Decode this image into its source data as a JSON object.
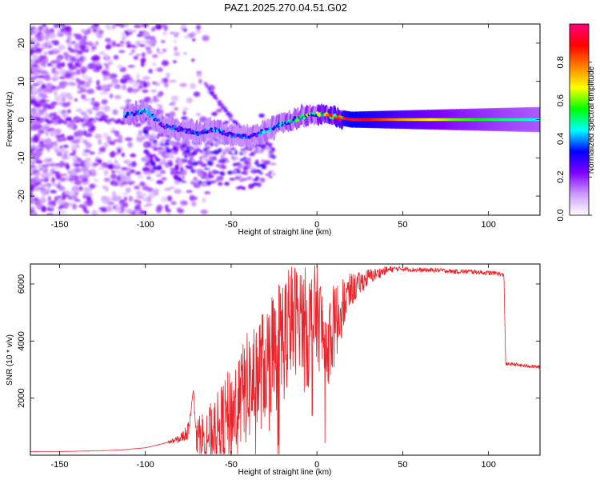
{
  "title": "PAZ1.2025.270.04.51.G02",
  "colors": {
    "snr_line": "#e8232a",
    "axis": "#000000"
  },
  "chart_data": [
    {
      "type": "heatmap",
      "name": "spectrogram",
      "xlabel": "Height of straight line (km)",
      "ylabel": "Frequency (Hz)",
      "xlim": [
        -167,
        130
      ],
      "ylim": [
        -25,
        25
      ],
      "x_ticks": [
        -150,
        -100,
        -50,
        0,
        50,
        100
      ],
      "y_ticks": [
        -20,
        -10,
        0,
        10,
        20
      ],
      "tick_labels_x": [
        "-150",
        "-100",
        "-50",
        "0",
        "50",
        "100"
      ],
      "tick_labels_y": [
        "-20",
        "-10",
        "0",
        "10",
        "20"
      ],
      "colorbar": {
        "label": "Normalized spectral amplitude",
        "range": [
          0.0,
          1.0
        ],
        "ticks": [
          0.0,
          0.2,
          0.4,
          0.6,
          0.8
        ],
        "tick_labels": [
          "0.0",
          "0.2",
          "0.4",
          "0.6",
          "0.8"
        ],
        "colormap": [
          "#ffffff",
          "#cc99ff",
          "#7f00ff",
          "#0000ff",
          "#00ffff",
          "#00ff00",
          "#ffff00",
          "#ff8000",
          "#ff0000",
          "#ff0080"
        ]
      },
      "signal_track": [
        {
          "x": -112,
          "f": 1.0,
          "a": 0.35
        },
        {
          "x": -100,
          "f": 2.5,
          "a": 0.35
        },
        {
          "x": -90,
          "f": -1.5,
          "a": 0.3
        },
        {
          "x": -80,
          "f": -2.5,
          "a": 0.3
        },
        {
          "x": -70,
          "f": -3.5,
          "a": 0.3
        },
        {
          "x": -60,
          "f": -2.5,
          "a": 0.35
        },
        {
          "x": -50,
          "f": -4.0,
          "a": 0.3
        },
        {
          "x": -40,
          "f": -4.5,
          "a": 0.3
        },
        {
          "x": -30,
          "f": -3.0,
          "a": 0.35
        },
        {
          "x": -20,
          "f": -1.0,
          "a": 0.4
        },
        {
          "x": -10,
          "f": 0.5,
          "a": 0.45
        },
        {
          "x": 0,
          "f": 1.5,
          "a": 0.5
        },
        {
          "x": 10,
          "f": 0.8,
          "a": 0.7
        },
        {
          "x": 20,
          "f": 0.0,
          "a": 0.95
        },
        {
          "x": 50,
          "f": 0.0,
          "a": 0.75
        },
        {
          "x": 80,
          "f": 0.0,
          "a": 0.6
        },
        {
          "x": 110,
          "f": 0.0,
          "a": 0.5
        },
        {
          "x": 130,
          "f": 0.0,
          "a": 0.45
        }
      ]
    },
    {
      "type": "line",
      "name": "snr",
      "xlabel": "Height of straight line (km)",
      "ylabel": "SNR (10 * v/v)",
      "xlim": [
        -167,
        130
      ],
      "ylim": [
        0,
        6700
      ],
      "x_ticks": [
        -150,
        -100,
        -50,
        0,
        50,
        100
      ],
      "y_ticks": [
        2000,
        4000,
        6000
      ],
      "tick_labels_x": [
        "-150",
        "-100",
        "-50",
        "0",
        "50",
        "100"
      ],
      "tick_labels_y": [
        "2000",
        "4000",
        "6000"
      ],
      "series": [
        {
          "name": "SNR",
          "x": [
            -167,
            -150,
            -130,
            -115,
            -100,
            -90,
            -80,
            -75,
            -72,
            -70,
            -65,
            -60,
            -55,
            -50,
            -45,
            -40,
            -35,
            -30,
            -25,
            -20,
            -15,
            -10,
            -5,
            0,
            5,
            10,
            15,
            20,
            25,
            30,
            35,
            40,
            45,
            50,
            60,
            70,
            80,
            90,
            100,
            105,
            109,
            110,
            115,
            120,
            130
          ],
          "y": [
            120,
            130,
            150,
            180,
            260,
            400,
            600,
            900,
            2300,
            800,
            900,
            1000,
            1400,
            1800,
            2300,
            2800,
            3200,
            3600,
            4100,
            4600,
            5000,
            5300,
            4800,
            5400,
            4200,
            4800,
            5500,
            5900,
            6100,
            6300,
            6400,
            6500,
            6550,
            6550,
            6500,
            6500,
            6450,
            6450,
            6400,
            6400,
            6300,
            3200,
            3200,
            3150,
            3100
          ]
        }
      ],
      "spike_amplitude": [
        0,
        0,
        0,
        0,
        0,
        0,
        150,
        300,
        0,
        700,
        1000,
        1200,
        1500,
        1700,
        1800,
        2000,
        2200,
        2000,
        2200,
        2400,
        2200,
        1800,
        2200,
        1800,
        1800,
        1500,
        1000,
        600,
        400,
        300,
        200,
        150,
        100,
        80,
        80,
        80,
        80,
        80,
        80,
        80,
        80,
        60,
        60,
        60,
        60
      ]
    }
  ]
}
